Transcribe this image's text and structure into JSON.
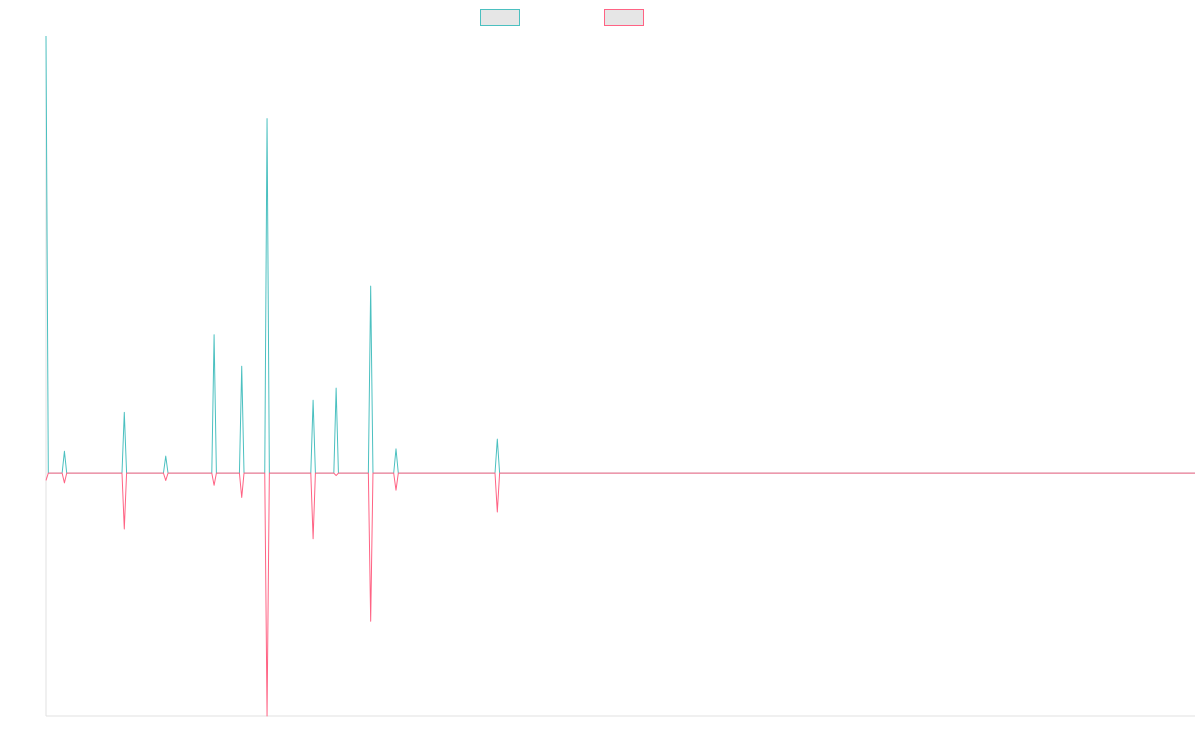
{
  "legend": {
    "items": [
      {
        "label": "",
        "color": "#4bc0c0",
        "fill": "#e6e6e6"
      },
      {
        "label": "",
        "color": "#ff6384",
        "fill": "#e6e6e6"
      }
    ]
  },
  "colors": {
    "axis": "#e0e0e0",
    "baseline": "#7a9a9a"
  },
  "chart_data": {
    "type": "line",
    "title": "",
    "xlabel": "",
    "ylabel": "",
    "grid": false,
    "legend_position": "top",
    "ylim": [
      -1.0,
      1.8
    ],
    "n_points": 500,
    "series": [
      {
        "color": "#4bc0c0",
        "spikes": [
          [
            0,
            1.8
          ],
          [
            8,
            0.09
          ],
          [
            34,
            0.25
          ],
          [
            52,
            0.07
          ],
          [
            73,
            0.57
          ],
          [
            85,
            0.44
          ],
          [
            96,
            1.46
          ],
          [
            116,
            0.3
          ],
          [
            126,
            0.35
          ],
          [
            141,
            0.77
          ],
          [
            152,
            0.1
          ],
          [
            196,
            0.14
          ]
        ]
      },
      {
        "color": "#ff6384",
        "spikes": [
          [
            0,
            -0.03
          ],
          [
            8,
            -0.04
          ],
          [
            34,
            -0.23
          ],
          [
            52,
            -0.03
          ],
          [
            73,
            -0.05
          ],
          [
            85,
            -0.1
          ],
          [
            96,
            -1.0
          ],
          [
            116,
            -0.27
          ],
          [
            126,
            -0.01
          ],
          [
            141,
            -0.61
          ],
          [
            152,
            -0.07
          ],
          [
            196,
            -0.16
          ]
        ]
      }
    ]
  }
}
